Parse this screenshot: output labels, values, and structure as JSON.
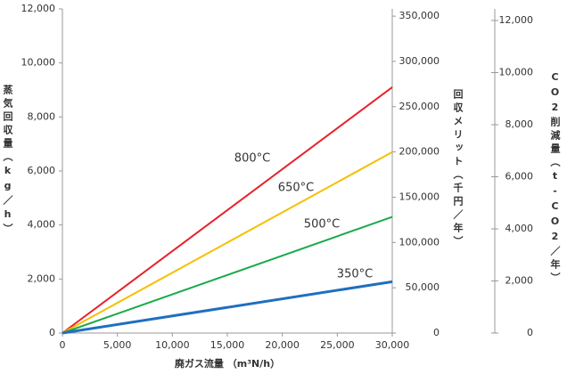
{
  "chart_data": {
    "type": "line",
    "xlabel": "廃ガス流量 （m³N/h）",
    "ylabel": "蒸気回収量（kg／h）",
    "y2label": "回収メリット（千円／年）",
    "y3label": "CO2削減量（t-CO2／年）",
    "x": [
      0,
      30000
    ],
    "series": [
      {
        "name": "800°C",
        "color": "#e8212a",
        "values": [
          0,
          9100
        ]
      },
      {
        "name": "650°C",
        "color": "#f5c000",
        "values": [
          0,
          6700
        ]
      },
      {
        "name": "500°C",
        "color": "#1aaa4a",
        "values": [
          0,
          4300
        ]
      },
      {
        "name": "350°C",
        "color": "#1f6fc0",
        "values": [
          0,
          1900
        ]
      }
    ],
    "xlim": [
      0,
      30000
    ],
    "xticks": [
      0,
      {
        "value": 5000,
        "label": "5,000"
      },
      {
        "value": 10000,
        "label": "10,000"
      },
      {
        "value": 15000,
        "label": "15,000"
      },
      {
        "value": 20000,
        "label": "20,000"
      },
      {
        "value": 25000,
        "label": "25,000"
      },
      {
        "value": 30000,
        "label": "30,000"
      }
    ],
    "ylim": [
      0,
      12000
    ],
    "yticks": [
      0,
      {
        "value": 2000,
        "label": "2,000"
      },
      {
        "value": 4000,
        "label": "4,000"
      },
      {
        "value": 6000,
        "label": "6,000"
      },
      {
        "value": 8000,
        "label": "8,000"
      },
      {
        "value": 10000,
        "label": "10,000"
      },
      {
        "value": 12000,
        "label": "12,000"
      }
    ],
    "y2lim": [
      0,
      358000
    ],
    "y2ticks": [
      0,
      {
        "value": 50000,
        "label": "50,000"
      },
      {
        "value": 100000,
        "label": "100,000"
      },
      {
        "value": 150000,
        "label": "150,000"
      },
      {
        "value": 200000,
        "label": "200,000"
      },
      {
        "value": 250000,
        "label": "250,000"
      },
      {
        "value": 300000,
        "label": "300,000"
      },
      {
        "value": 350000,
        "label": "350,000"
      }
    ],
    "y3lim": [
      0,
      12444
    ],
    "y3ticks": [
      0,
      {
        "value": 2000,
        "label": "2,000"
      },
      {
        "value": 4000,
        "label": "4,000"
      },
      {
        "value": 6000,
        "label": "6,000"
      },
      {
        "value": 8000,
        "label": "8,000"
      },
      {
        "value": 10000,
        "label": "10,000"
      },
      {
        "value": 12000,
        "label": "12,000"
      }
    ],
    "grid": false
  }
}
